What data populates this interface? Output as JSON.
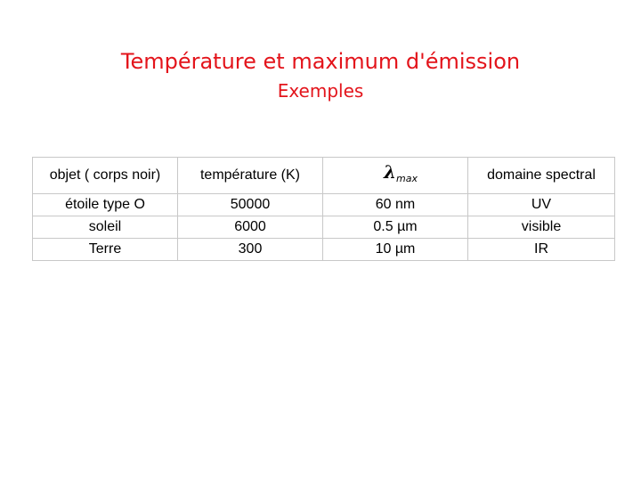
{
  "title": "Température et maximum d'émission",
  "subtitle": "Exemples",
  "table": {
    "headers": {
      "object": "objet ( corps noir)",
      "temperature": "température (K)",
      "lambda_symbol": "λ",
      "lambda_subscript": "max",
      "domain": "domaine spectral"
    },
    "rows": [
      {
        "object": "étoile type O",
        "temperature": "50000",
        "lambda": "60 nm",
        "domain": "UV"
      },
      {
        "object": "soleil",
        "temperature": "6000",
        "lambda": "0.5 µm",
        "domain": "visible"
      },
      {
        "object": "Terre",
        "temperature": "300",
        "lambda": "10 µm",
        "domain": "IR"
      }
    ]
  },
  "colors": {
    "title": "#e3141b",
    "grid": "#c8c8c8"
  }
}
